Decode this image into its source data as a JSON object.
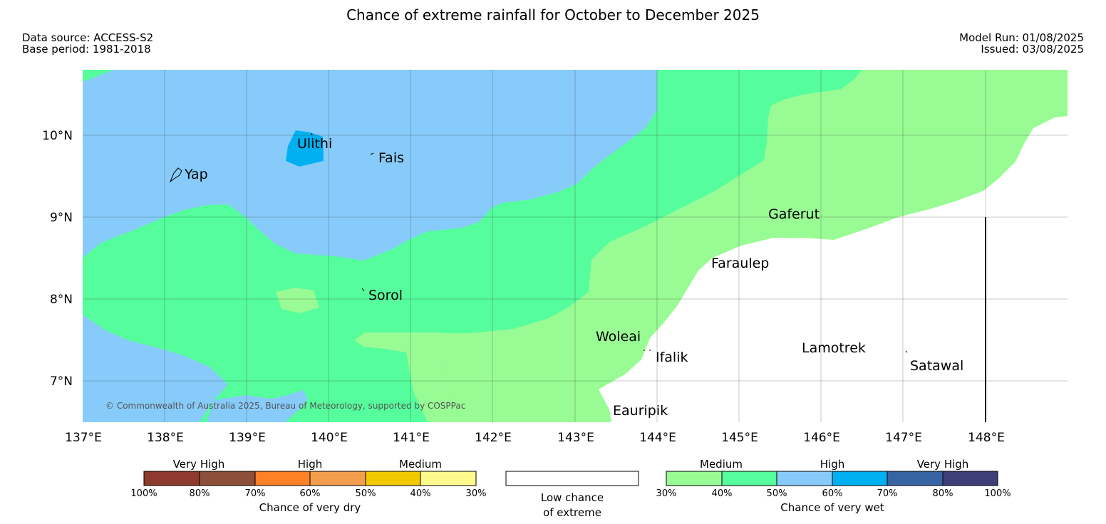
{
  "title": "Chance of extreme rainfall for October to December 2025",
  "meta": {
    "data_source": "Data source: ACCESS-S2",
    "base_period": "Base period: 1981-2018",
    "model_run": "Model Run: 01/08/2025",
    "issued": "Issued: 03/08/2025"
  },
  "axes": {
    "lon_ticks": [
      "137°E",
      "138°E",
      "139°E",
      "140°E",
      "141°E",
      "142°E",
      "143°E",
      "144°E",
      "145°E",
      "146°E",
      "147°E",
      "148°E"
    ],
    "lat_ticks": [
      "10°N",
      "9°N",
      "8°N",
      "7°N"
    ]
  },
  "places": [
    "Ulithi",
    "Fais",
    "Yap",
    "Gaferut",
    "Faraulep",
    "Sorol",
    "Woleai",
    "Ifalik",
    "Lamotrek",
    "Satawal",
    "Eauripik"
  ],
  "copyright": "© Commonwealth of Australia 2025, Bureau of Meteorology, supported by COSPPac",
  "colors": {
    "wet_medium_30_40": "#99fb94",
    "wet_medium_40_50": "#55fd9c",
    "wet_high_50_60": "#87cbfa",
    "wet_high_60_70": "#00b0f0",
    "wet_veryhigh_70_80": "#3863a2",
    "wet_veryhigh_80_100": "#3e3e78",
    "dry_veryhigh_100_80": "#8e3a2f",
    "dry_veryhigh_80_70": "#8e4f3a",
    "dry_high_70_60": "#ff8125",
    "dry_high_60_50": "#f29e4c",
    "dry_medium_50_40": "#f1c900",
    "dry_medium_40_30": "#fffa8e",
    "low_chance": "#ffffff"
  },
  "legend": {
    "dry": {
      "groups": [
        "Very High",
        "High",
        "Medium"
      ],
      "ticks": [
        "100%",
        "80%",
        "70%",
        "60%",
        "50%",
        "40%",
        "30%"
      ],
      "caption": "Chance of very dry"
    },
    "neutral": {
      "line1": "Low chance",
      "line2": "of extreme"
    },
    "wet": {
      "groups": [
        "Medium",
        "High",
        "Very High"
      ],
      "ticks": [
        "30%",
        "40%",
        "50%",
        "60%",
        "70%",
        "80%",
        "100%"
      ],
      "caption": "Chance of very wet"
    }
  }
}
